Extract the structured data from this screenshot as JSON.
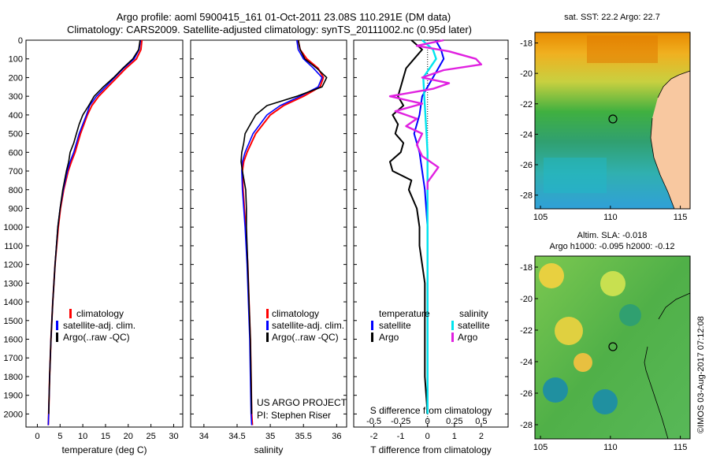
{
  "header": {
    "title_line1": "Argo profile: aoml 5900415_161 01-Oct-2011 23.08S 110.291E (DM data)",
    "title_line2": "Climatology: CARS2009. Satellite-adjusted climatology: synTS_20111002.nc (0.95d later)"
  },
  "legend_ts": {
    "climatology": "climatology",
    "satellite": "satellite-adj. clim.",
    "argo": "Argo(..raw -QC)"
  },
  "legend_diff": {
    "temperature": "temperature",
    "salinity": "salinity",
    "satellite": "satellite",
    "argo": "Argo"
  },
  "project": {
    "line1": "US ARGO PROJECT",
    "line2": "PI: Stephen Riser"
  },
  "maps": {
    "sst_title": "sat. SST: 22.2  Argo: 22.7",
    "sla_title1": "Altim. SLA: -0.018",
    "sla_title2": "Argo h1000: -0.095 h2000: -0.12",
    "x_ticks": [
      "105",
      "110",
      "115"
    ],
    "y_ticks": [
      "-18",
      "-20",
      "-22",
      "-24",
      "-26",
      "-28"
    ],
    "argo_location": {
      "lon": 110.291,
      "lat": -23.08
    },
    "land_color": "#f8c8a0"
  },
  "credit": "©IMOS 03-Aug-2017 07:12:08",
  "colors": {
    "climatology": "#ff0000",
    "satellite": "#0000ff",
    "argo": "#000000",
    "sal_sat": "#00e5ee",
    "sal_argo": "#e020e0"
  },
  "chart_data": [
    {
      "type": "line",
      "xlabel": "temperature (deg C)",
      "ylabel": "",
      "xlim": [
        -2.5,
        32
      ],
      "ylim": [
        2070,
        0
      ],
      "x_ticks": [
        0,
        5,
        10,
        15,
        20,
        25,
        30
      ],
      "y_ticks": [
        0,
        100,
        200,
        300,
        400,
        500,
        600,
        700,
        800,
        900,
        1000,
        1100,
        1200,
        1300,
        1400,
        1500,
        1600,
        1700,
        1800,
        1900,
        2000
      ],
      "series": [
        {
          "name": "climatology",
          "y": [
            0,
            50,
            100,
            150,
            200,
            250,
            300,
            350,
            400,
            500,
            600,
            650,
            700,
            800,
            900,
            1000,
            1200,
            1400,
            1600,
            1800,
            2000,
            2060
          ],
          "x": [
            23.0,
            22.8,
            21.8,
            19.5,
            17.5,
            15.5,
            13.5,
            12.0,
            11.0,
            9.5,
            8.3,
            7.5,
            6.8,
            5.8,
            5.1,
            4.6,
            3.9,
            3.4,
            3.0,
            2.7,
            2.5,
            2.4
          ]
        },
        {
          "name": "satellite-adj. clim.",
          "y": [
            0,
            50,
            100,
            150,
            200,
            250,
            300,
            350,
            400,
            500,
            600,
            650,
            700,
            800,
            900,
            1000,
            1200,
            1400,
            1600,
            1800,
            2000,
            2060
          ],
          "x": [
            22.7,
            22.4,
            21.3,
            19.0,
            17.0,
            15.0,
            13.0,
            11.5,
            10.8,
            9.2,
            8.0,
            7.2,
            6.6,
            5.7,
            5.0,
            4.5,
            3.9,
            3.4,
            3.0,
            2.7,
            2.5,
            2.4
          ]
        },
        {
          "name": "Argo(..raw -QC)",
          "y": [
            0,
            50,
            100,
            150,
            200,
            250,
            300,
            350,
            400,
            450,
            500,
            550,
            600,
            650,
            700,
            800,
            900,
            1000,
            1200,
            1400,
            1600,
            1800,
            2000
          ],
          "x": [
            22.6,
            22.3,
            21.0,
            18.8,
            16.8,
            14.5,
            12.5,
            11.3,
            10.0,
            9.2,
            8.6,
            8.0,
            7.2,
            6.9,
            6.4,
            5.6,
            5.0,
            4.5,
            3.9,
            3.4,
            3.0,
            2.7,
            2.5
          ]
        }
      ]
    },
    {
      "type": "line",
      "xlabel": "salinity",
      "ylabel": "",
      "xlim": [
        33.8,
        36.15
      ],
      "ylim": [
        2070,
        0
      ],
      "x_ticks": [
        34,
        34.5,
        35,
        35.5,
        36
      ],
      "series": [
        {
          "name": "climatology",
          "y": [
            0,
            50,
            100,
            150,
            200,
            250,
            300,
            350,
            400,
            500,
            600,
            650,
            700,
            800,
            900,
            1000,
            1200,
            1400,
            1600,
            1800,
            2000,
            2060
          ],
          "x": [
            35.42,
            35.45,
            35.55,
            35.72,
            35.8,
            35.75,
            35.5,
            35.2,
            35.0,
            34.78,
            34.65,
            34.6,
            34.58,
            34.59,
            34.61,
            34.63,
            34.66,
            34.68,
            34.7,
            34.71,
            34.72,
            34.73
          ]
        },
        {
          "name": "satellite-adj. clim.",
          "y": [
            0,
            50,
            100,
            150,
            200,
            250,
            300,
            350,
            400,
            500,
            600,
            650,
            700,
            800,
            900,
            1000,
            1200,
            1400,
            1600,
            1800,
            2000,
            2060
          ],
          "x": [
            35.4,
            35.42,
            35.5,
            35.65,
            35.78,
            35.72,
            35.45,
            35.15,
            34.95,
            34.74,
            34.62,
            34.58,
            34.57,
            34.58,
            34.6,
            34.62,
            34.65,
            34.67,
            34.69,
            34.7,
            34.71,
            34.72
          ]
        },
        {
          "name": "Argo(..raw -QC)",
          "y": [
            0,
            50,
            100,
            150,
            200,
            250,
            300,
            350,
            400,
            450,
            500,
            550,
            600,
            650,
            700,
            800,
            900,
            1000,
            1200,
            1400,
            1600,
            1800,
            2000
          ],
          "x": [
            35.42,
            35.45,
            35.52,
            35.7,
            35.85,
            35.78,
            35.4,
            34.95,
            34.78,
            34.7,
            34.62,
            34.6,
            34.57,
            34.56,
            34.58,
            34.63,
            34.64,
            34.64,
            34.66,
            34.68,
            34.7,
            34.71,
            34.72
          ]
        }
      ]
    },
    {
      "type": "line",
      "xlabel": "T difference from climatology",
      "xlabel_top": "S difference from climatology",
      "ylabel": "",
      "xlim": [
        -2.75,
        3.0
      ],
      "ylim": [
        2070,
        0
      ],
      "x_ticks": [
        -2,
        -1,
        0,
        1,
        2
      ],
      "x_ticks_top": [
        -0.5,
        -0.25,
        0,
        0.25,
        0.5
      ],
      "series": [
        {
          "name": "temperature satellite",
          "y": [
            0,
            50,
            100,
            150,
            200,
            300,
            400,
            500,
            600,
            700,
            800,
            1000,
            1200,
            1400,
            1600,
            1800,
            2000
          ],
          "x": [
            0.3,
            0.5,
            0.6,
            0.4,
            0.2,
            -0.2,
            -0.3,
            -0.5,
            -0.3,
            -0.2,
            -0.1,
            0.0,
            0.0,
            0.0,
            0.0,
            0.0,
            0.0
          ]
        },
        {
          "name": "temperature Argo",
          "y": [
            0,
            50,
            100,
            150,
            200,
            250,
            300,
            350,
            400,
            450,
            500,
            550,
            600,
            650,
            700,
            750,
            800,
            900,
            1000,
            1100,
            1200,
            1300,
            1400,
            1500,
            1600,
            1800,
            2000
          ],
          "x": [
            -0.6,
            -0.2,
            -0.5,
            -0.8,
            -0.9,
            -1.0,
            -1.1,
            -0.9,
            -1.3,
            -1.1,
            -1.2,
            -0.9,
            -1.0,
            -1.4,
            -1.3,
            -0.6,
            -0.7,
            -0.4,
            -0.3,
            -0.3,
            -0.2,
            -0.1,
            -0.1,
            -0.1,
            -0.1,
            -0.1,
            0.0
          ]
        },
        {
          "name": "salinity satellite",
          "y": [
            0,
            50,
            100,
            150,
            200,
            300,
            400,
            500,
            600,
            700,
            800,
            1000,
            1200,
            1400,
            1600,
            1800,
            2000
          ],
          "x": [
            -0.05,
            0.05,
            0.08,
            0.02,
            -0.04,
            -0.03,
            -0.02,
            -0.01,
            0.0,
            0.0,
            0.0,
            0.0,
            0.0,
            0.0,
            0.0,
            0.0,
            0.0
          ]
        },
        {
          "name": "salinity Argo",
          "y": [
            0,
            30,
            60,
            100,
            130,
            160,
            200,
            230,
            260,
            300,
            340,
            380,
            420,
            460,
            500,
            560,
            620,
            680,
            720,
            760,
            800
          ],
          "x": [
            0.15,
            -0.1,
            0.2,
            0.45,
            0.5,
            0.15,
            -0.05,
            0.2,
            0.05,
            -0.35,
            -0.05,
            -0.3,
            -0.1,
            -0.2,
            -0.05,
            -0.1,
            -0.05,
            0.1,
            0.05,
            0.0,
            0.0
          ]
        }
      ]
    }
  ]
}
